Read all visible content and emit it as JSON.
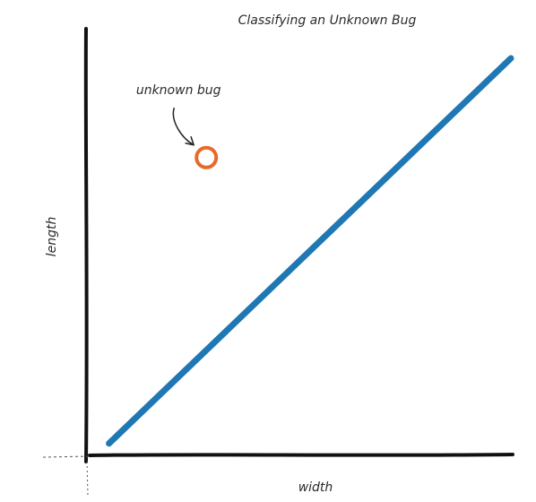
{
  "chart_data": {
    "type": "scatter",
    "title": "Classifying an Unknown Bug",
    "xlabel": "width",
    "ylabel": "length",
    "grid": false,
    "series": [
      {
        "kind": "line",
        "color": "#1f77b4",
        "x": [
          0.05,
          1.0
        ],
        "y": [
          0.03,
          1.0
        ]
      },
      {
        "kind": "point",
        "color": "#e8692a",
        "x": [
          0.28
        ],
        "y": [
          0.75
        ]
      }
    ],
    "annotations": [
      {
        "text": "unknown bug",
        "target_series": 1,
        "target_index": 0
      }
    ]
  }
}
